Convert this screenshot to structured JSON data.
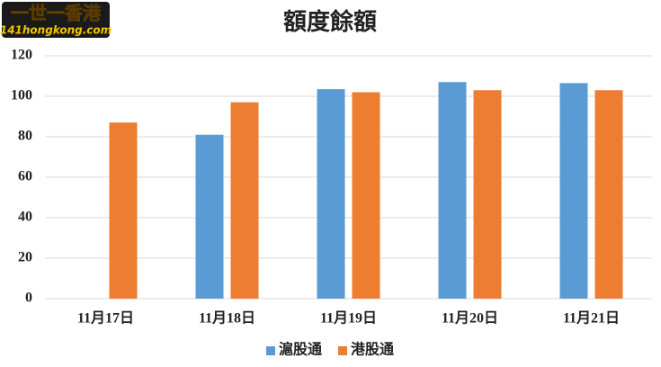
{
  "chart_data": {
    "type": "bar",
    "title": "額度餘額",
    "watermark": [
      "一世一香港",
      "141hongkong.com"
    ],
    "categories": [
      "11月17日",
      "11月18日",
      "11月19日",
      "11月20日",
      "11月21日"
    ],
    "series": [
      {
        "name": "滬股通",
        "color": "#5b9bd5",
        "values": [
          null,
          81,
          103.5,
          107,
          106.5
        ]
      },
      {
        "name": "港股通",
        "color": "#ed7d31",
        "values": [
          87,
          97,
          102,
          103,
          103
        ]
      }
    ],
    "ylim": [
      0,
      120
    ],
    "yticks": [
      0,
      20,
      40,
      60,
      80,
      100,
      120
    ],
    "grid": true,
    "legend": "bottom"
  }
}
